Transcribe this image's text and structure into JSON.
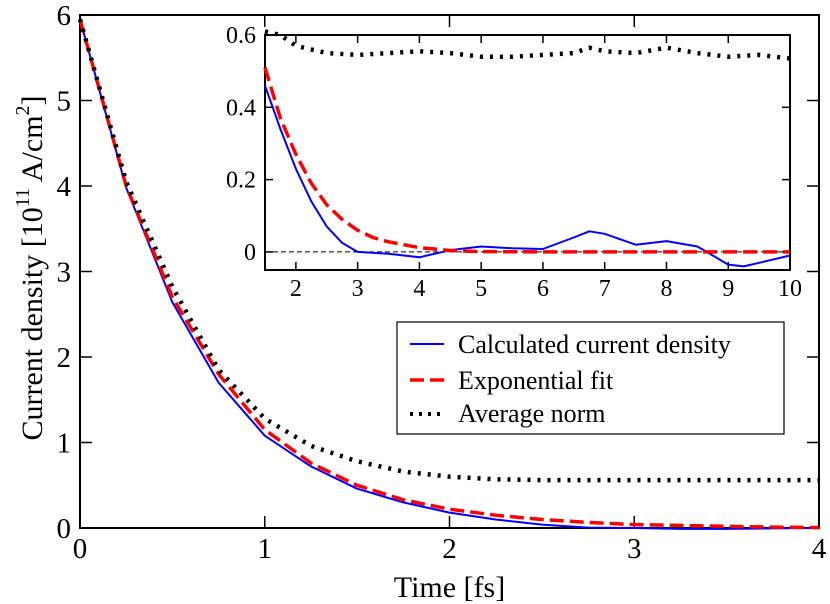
{
  "chart_data": [
    {
      "type": "line",
      "title": "",
      "xlabel": "Time [fs]",
      "ylabel": {
        "prefix": "Current density [10",
        "exponent": "11",
        "unit": " A/cm",
        "unit_exponent": "2",
        "suffix": "]"
      },
      "xlim": [
        0,
        4
      ],
      "ylim": [
        0,
        6
      ],
      "xticks": [
        0,
        1,
        2,
        3,
        4
      ],
      "yticks": [
        0,
        1,
        2,
        3,
        4,
        5,
        6
      ],
      "grid": false,
      "legend_position": "center-right",
      "reference_line": {
        "y": 0,
        "style": "dashed",
        "color": "#000000"
      },
      "series": [
        {
          "name": "Calculated current density",
          "color": "#0000ff",
          "style": "solid",
          "x": [
            0,
            0.25,
            0.5,
            0.75,
            1.0,
            1.25,
            1.5,
            1.75,
            2.0,
            2.25,
            2.5,
            2.75,
            3.0,
            3.25,
            3.5,
            3.75,
            4.0
          ],
          "y": [
            5.95,
            3.98,
            2.64,
            1.7,
            1.08,
            0.72,
            0.46,
            0.3,
            0.18,
            0.1,
            0.04,
            0.005,
            0.0,
            -0.01,
            -0.01,
            -0.005,
            0.0
          ]
        },
        {
          "name": "Exponential fit",
          "color": "#ff0000",
          "style": "dashed",
          "x": [
            0,
            0.25,
            0.5,
            0.75,
            1.0,
            1.25,
            1.5,
            1.75,
            2.0,
            2.25,
            2.5,
            2.75,
            3.0,
            3.25,
            3.5,
            3.75,
            4.0
          ],
          "y": [
            5.95,
            4.0,
            2.7,
            1.8,
            1.15,
            0.76,
            0.5,
            0.33,
            0.22,
            0.15,
            0.1,
            0.065,
            0.04,
            0.03,
            0.02,
            0.01,
            0.005
          ]
        },
        {
          "name": "Average norm",
          "color": "#000000",
          "style": "dotted",
          "x": [
            0,
            0.25,
            0.5,
            0.75,
            1.0,
            1.25,
            1.5,
            1.75,
            2.0,
            2.25,
            2.5,
            2.75,
            3.0,
            3.25,
            3.5,
            3.75,
            4.0
          ],
          "y": [
            5.95,
            4.05,
            2.82,
            1.85,
            1.28,
            0.96,
            0.78,
            0.66,
            0.6,
            0.57,
            0.56,
            0.56,
            0.56,
            0.56,
            0.56,
            0.56,
            0.56
          ]
        }
      ]
    },
    {
      "type": "line",
      "title": "",
      "placement": "inset top-right",
      "xlabel": "",
      "ylabel": "",
      "xlim": [
        1.5,
        10
      ],
      "ylim": [
        -0.05,
        0.6
      ],
      "xticks": [
        2,
        3,
        4,
        5,
        6,
        7,
        8,
        9,
        10
      ],
      "xtick_labels": [
        "2",
        "3",
        "4",
        "5",
        "6",
        "7",
        "8",
        "9",
        "10"
      ],
      "yticks": [
        0,
        0.2,
        0.4,
        0.6
      ],
      "ytick_labels": [
        "0",
        "0.2",
        "0.4",
        "0.6"
      ],
      "grid": false,
      "reference_line": {
        "y": 0,
        "style": "dashed",
        "color": "#000000"
      },
      "series": [
        {
          "name": "Calculated current density",
          "color": "#0000ff",
          "style": "solid",
          "x": [
            1.5,
            1.75,
            2.0,
            2.25,
            2.5,
            2.75,
            3.0,
            3.5,
            4.0,
            4.5,
            5.0,
            5.5,
            6.0,
            6.5,
            6.75,
            7.0,
            7.5,
            8.0,
            8.5,
            8.75,
            9.0,
            9.25,
            9.5,
            10.0
          ],
          "y": [
            0.46,
            0.34,
            0.23,
            0.14,
            0.07,
            0.025,
            0.0,
            -0.005,
            -0.015,
            0.005,
            0.015,
            0.01,
            0.008,
            0.04,
            0.057,
            0.05,
            0.02,
            0.03,
            0.015,
            -0.01,
            -0.035,
            -0.04,
            -0.03,
            -0.01
          ]
        },
        {
          "name": "Exponential fit",
          "color": "#ff0000",
          "style": "dashed",
          "x": [
            1.5,
            1.75,
            2.0,
            2.25,
            2.5,
            2.75,
            3.0,
            3.25,
            3.5,
            4.0,
            4.5,
            5.0,
            6.0,
            7.0,
            8.0,
            9.0,
            10.0
          ],
          "y": [
            0.51,
            0.37,
            0.27,
            0.19,
            0.13,
            0.09,
            0.06,
            0.04,
            0.028,
            0.012,
            0.004,
            0.001,
            0.0,
            0.0,
            0.0,
            0.0,
            0.0
          ]
        },
        {
          "name": "Average norm",
          "color": "#000000",
          "style": "dotted",
          "x": [
            1.5,
            1.75,
            2.0,
            2.5,
            3.0,
            3.5,
            4.0,
            4.5,
            5.0,
            5.5,
            6.0,
            6.5,
            6.75,
            7.0,
            7.5,
            8.0,
            8.5,
            9.0,
            9.5,
            10.0
          ],
          "y": [
            0.61,
            0.6,
            0.57,
            0.55,
            0.545,
            0.55,
            0.555,
            0.55,
            0.54,
            0.54,
            0.545,
            0.55,
            0.565,
            0.555,
            0.55,
            0.565,
            0.55,
            0.54,
            0.545,
            0.535
          ]
        }
      ]
    }
  ]
}
